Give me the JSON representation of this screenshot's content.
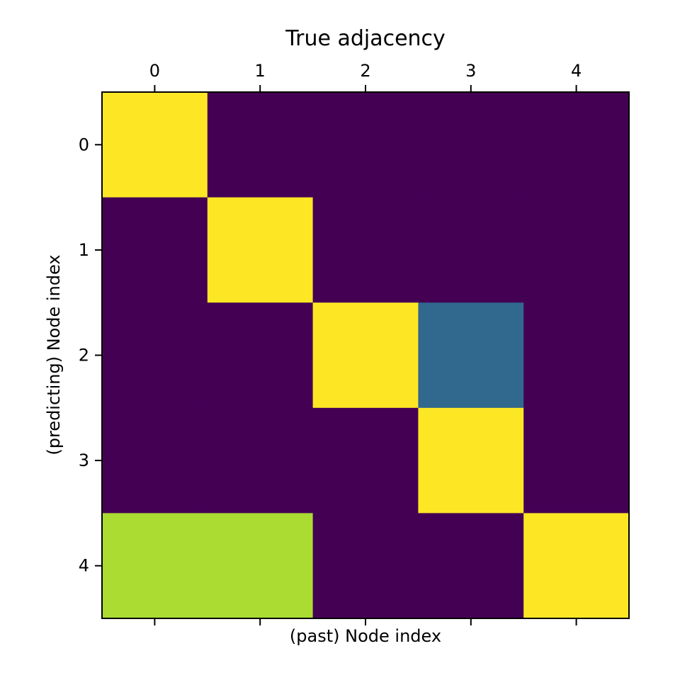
{
  "chart_data": {
    "type": "heatmap",
    "title": "True adjacency",
    "xlabel": "(past) Node index",
    "ylabel": "(predicting) Node index",
    "x_ticks": [
      "0",
      "1",
      "2",
      "3",
      "4"
    ],
    "y_ticks": [
      "0",
      "1",
      "2",
      "3",
      "4"
    ],
    "colormap": "viridis",
    "vmin": 0,
    "vmax": 1,
    "grid": false,
    "x_ticks_position": "top",
    "values": [
      [
        1.0,
        0.0,
        0.0,
        0.0,
        0.0
      ],
      [
        0.0,
        1.0,
        0.0,
        0.0,
        0.0
      ],
      [
        0.0,
        0.0,
        1.0,
        0.35,
        0.0
      ],
      [
        0.0,
        0.0,
        0.0,
        1.0,
        0.0
      ],
      [
        0.85,
        0.85,
        0.0,
        0.0,
        1.0
      ]
    ]
  }
}
